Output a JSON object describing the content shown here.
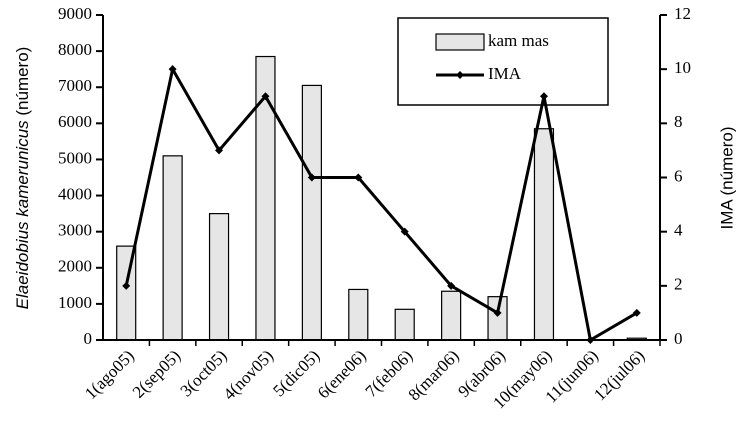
{
  "chart_data": {
    "type": "bar-line",
    "y_label_italic": "Elaeidobius kamerunicus",
    "y_label_rest": "(número)",
    "y2_label": "IMA  (número)",
    "categories": [
      "1(ago05)",
      "2(sep05)",
      "3(oct05)",
      "4(nov05)",
      "5(dic05)",
      "6(ene06)",
      "7(feb06)",
      "8(mar06)",
      "9(abr06)",
      "10(may06)",
      "11(jun06)",
      "12(jul06)"
    ],
    "series": [
      {
        "name": "kam mas",
        "type": "bar",
        "color": "#e6e6e6",
        "values": [
          2600,
          5100,
          3500,
          7850,
          7050,
          1400,
          850,
          1350,
          1200,
          5850,
          0,
          50
        ]
      },
      {
        "name": "IMA",
        "type": "line",
        "axis": "y2",
        "color": "#000000",
        "values": [
          2,
          10,
          7,
          9,
          6,
          6,
          4,
          2,
          1,
          9,
          0,
          1
        ]
      }
    ],
    "ylim": [
      0,
      9000
    ],
    "yticks": [
      0,
      1000,
      2000,
      3000,
      4000,
      5000,
      6000,
      7000,
      8000,
      9000
    ],
    "y2lim": [
      0,
      12
    ],
    "y2ticks": [
      0,
      2,
      4,
      6,
      8,
      10,
      12
    ]
  }
}
